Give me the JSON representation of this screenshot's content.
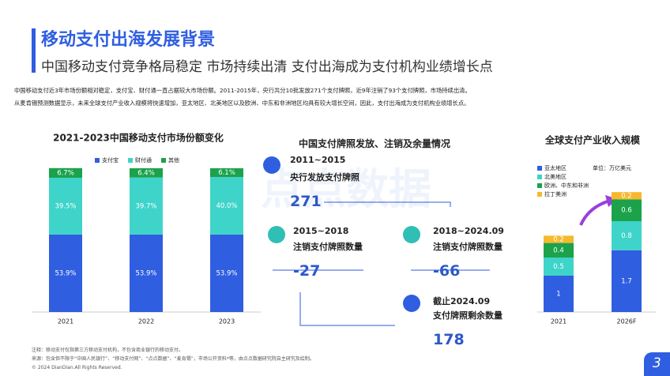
{
  "header": {
    "title": "移动支付出海发展背景",
    "subtitle": "中国移动支付竞争格局稳定 市场持续出清 支付出海成为支付机构业绩增长点"
  },
  "intro": [
    "中国移动支付近3年市场份额相对稳定，支付宝、财付通一直占据较大市场份额。2011-2015年，央行共分10批发放271个支付牌照，近9年注销了93个支付牌照，市场持续出清。",
    "从麦肯锡预测数据显示，未来全球支付产业收入规模将快速增加，亚太地区、北美地区以及欧洲、中东和非洲地区均具有较大增长空间，因此，支付出海成为支付机构业绩增长点。"
  ],
  "chart_data": [
    {
      "type": "stacked-bar",
      "title": "2021-2023中国移动支付市场份额变化",
      "categories": [
        "2021",
        "2022",
        "2023"
      ],
      "ylim": [
        0,
        100
      ],
      "legend": "top-left",
      "series": [
        {
          "name": "支付宝",
          "color": "#2f5ee0",
          "values": [
            53.9,
            53.9,
            53.9
          ],
          "value_labels": [
            "53.9%",
            "53.9%",
            "53.9%"
          ]
        },
        {
          "name": "财付通",
          "color": "#3fd4c9",
          "values": [
            39.5,
            39.7,
            40.0
          ],
          "value_labels": [
            "39.5%",
            "39.7%",
            "40.0%"
          ]
        },
        {
          "name": "其他",
          "color": "#1ba24b",
          "values": [
            6.7,
            6.4,
            6.1
          ],
          "value_labels": [
            "6.7%",
            "6.4%",
            "6.1%"
          ]
        }
      ]
    },
    {
      "type": "stacked-bar",
      "title": "全球支付产业收入规模",
      "unit_label": "单位：万亿美元",
      "categories": [
        "2021",
        "2026F"
      ],
      "ylim": [
        0,
        3.5
      ],
      "legend": "top-left",
      "series": [
        {
          "name": "亚太地区",
          "color": "#2f5ee0",
          "values": [
            1,
            1.7
          ]
        },
        {
          "name": "北美地区",
          "color": "#3fd4c9",
          "values": [
            0.5,
            0.8
          ]
        },
        {
          "name": "欧洲、中东和非洲",
          "color": "#1ba24b",
          "values": [
            0.4,
            0.6
          ]
        },
        {
          "name": "拉丁美洲",
          "color": "#f6b82d",
          "values": [
            0.2,
            0.2
          ]
        }
      ]
    }
  ],
  "license_panel": {
    "title": "中国支付牌照发放、注销及余量情况",
    "watermark": "点点数据",
    "items": [
      {
        "period": "2011~2015",
        "label": "央行发放支付牌照",
        "value": "271"
      },
      {
        "period": "2015~2018",
        "label": "注销支付牌照数量",
        "value": "-27"
      },
      {
        "period": "2018~2024.09",
        "label": "注销支付牌照数量",
        "value": "-66"
      },
      {
        "period": "截止2024.09",
        "label": "支付牌照剩余数量",
        "value": "178"
      }
    ]
  },
  "notes": [
    "注释：移动支付仅指第三方移动支付机构，不包含商业银行的移动支付。",
    "来源：包含但不限于“中国人民银行”、“移动支付网”、“点点数据”、“麦肯锡”，市场公开资料*等，由点点数据研究院自主研究及绘制。"
  ],
  "copyright": "© 2024 DianDian.All Rights Reserved.",
  "page_number": "3"
}
